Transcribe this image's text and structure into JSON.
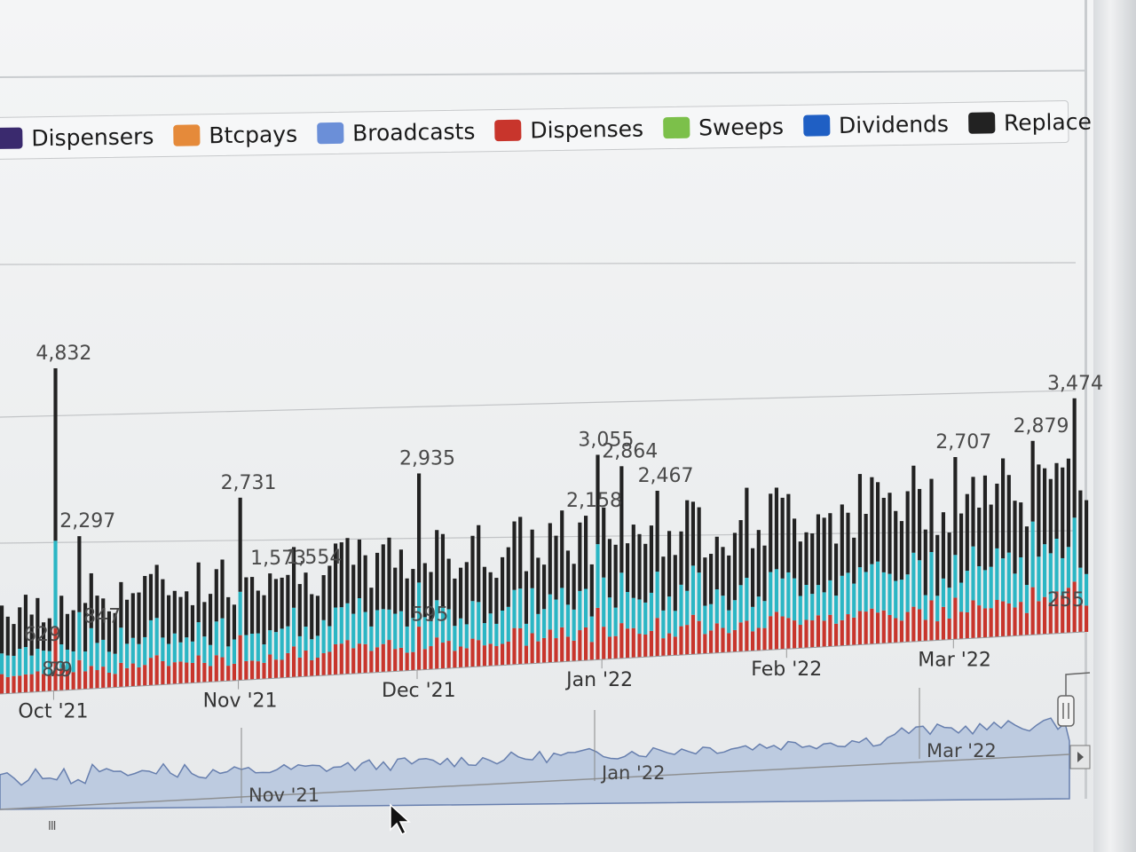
{
  "legend": {
    "items": [
      {
        "label": "Dispensers",
        "color": "#3a2a6e"
      },
      {
        "label": "Btcpays",
        "color": "#e58a3a"
      },
      {
        "label": "Broadcasts",
        "color": "#6b8fd8"
      },
      {
        "label": "Dispenses",
        "color": "#c8352c"
      },
      {
        "label": "Sweeps",
        "color": "#7cc04a"
      },
      {
        "label": "Dividends",
        "color": "#1f5fc4"
      },
      {
        "label": "Replace",
        "color": "#222222"
      }
    ]
  },
  "navigator": {
    "labels": [
      "Nov '21",
      "Jan '22",
      "Mar '22"
    ],
    "scroll_hint": "III"
  },
  "chart_data": {
    "type": "bar",
    "stacked": true,
    "x_tick_labels": [
      "Oct '21",
      "Nov '21",
      "Dec '21",
      "Jan '22",
      "Feb '22",
      "Mar '22"
    ],
    "series_colors": {
      "Dispenses": "#c8352c",
      "Teal": "#2bb6c4",
      "Replace": "#222222"
    },
    "data_labels": [
      {
        "text": "4,832",
        "value": 4832,
        "date": "2021-10-01"
      },
      {
        "text": "2,731",
        "value": 2731,
        "date": "2021-11-01"
      },
      {
        "text": "2,935",
        "value": 2935,
        "date": "2021-12-01"
      },
      {
        "text": "3,055",
        "value": 3055,
        "date": "2021-12-31"
      },
      {
        "text": "2,707",
        "value": 2707,
        "date": "2022-03-01"
      },
      {
        "text": "3,474",
        "value": 3474,
        "date": "2022-03-21"
      },
      {
        "text": "2,297",
        "value": 2297,
        "date": "2021-10-05"
      },
      {
        "text": "2,864",
        "value": 2864,
        "date": "2022-01-04"
      },
      {
        "text": "2,467",
        "value": 2467,
        "date": "2022-01-10"
      },
      {
        "text": "2,158",
        "value": 2158,
        "date": "2021-12-29"
      },
      {
        "text": "2,879",
        "value": 2879,
        "date": "2022-03-14"
      },
      {
        "text": "1,554",
        "value": 1554,
        "date": "2021-11-12"
      },
      {
        "text": "1,573",
        "value": 1573,
        "date": "2021-11-06"
      },
      {
        "text": "255",
        "value": 255,
        "date": "2022-03-22"
      },
      {
        "text": "847",
        "value": 847,
        "date": "2021-10-09"
      },
      {
        "text": "595",
        "value": 595,
        "date": "2021-12-03"
      },
      {
        "text": "629",
        "value": 629,
        "date": "2021-09-29"
      },
      {
        "text": "89",
        "value": 89,
        "date": "2021-10-02"
      },
      {
        "text": "79",
        "value": 79,
        "date": "2021-10-03"
      }
    ],
    "grid": true,
    "legend_position": "top"
  }
}
